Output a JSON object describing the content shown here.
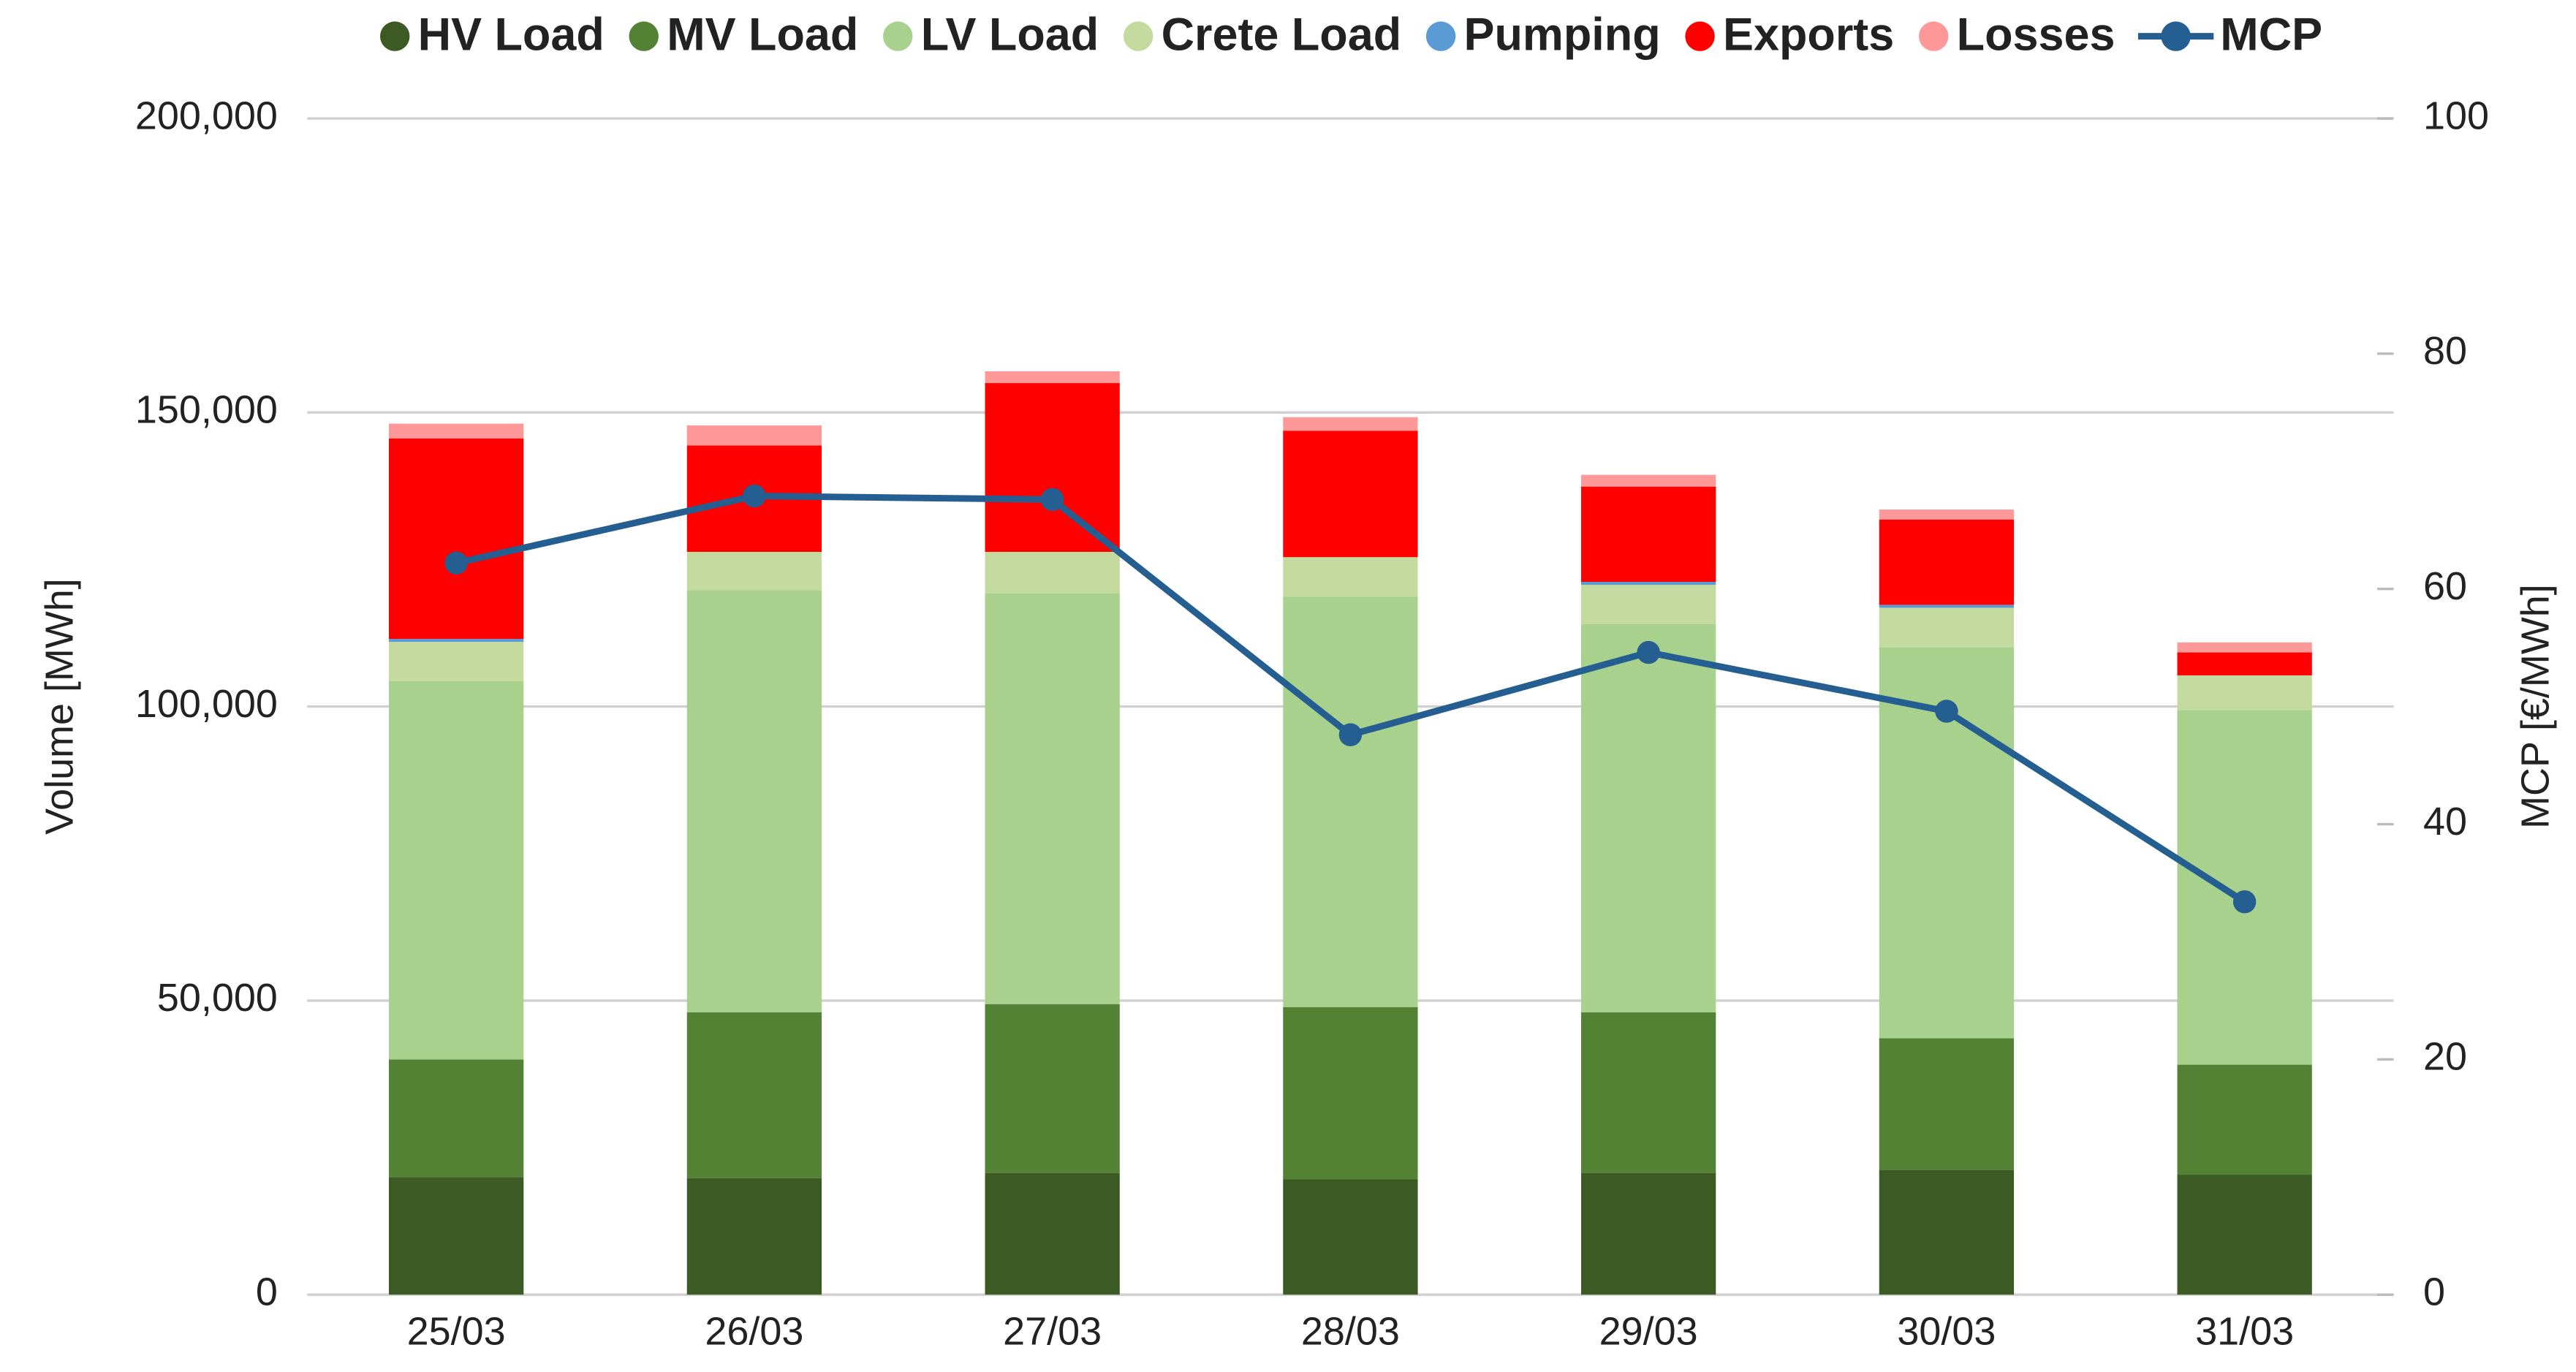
{
  "chart_data": {
    "type": "bar",
    "stacked": true,
    "categories": [
      "25/03",
      "26/03",
      "27/03",
      "28/03",
      "29/03",
      "30/03",
      "31/03"
    ],
    "series": [
      {
        "name": "HV Load",
        "color": "#3b5a24",
        "values": [
          20000,
          19800,
          20700,
          19600,
          20700,
          21200,
          20400
        ]
      },
      {
        "name": "MV Load",
        "color": "#548235",
        "values": [
          20000,
          28200,
          28700,
          29300,
          27300,
          22400,
          18700
        ]
      },
      {
        "name": "LV Load",
        "color": "#a9d18e",
        "values": [
          64300,
          71800,
          69900,
          69800,
          66000,
          66500,
          60300
        ]
      },
      {
        "name": "Crete Load",
        "color": "#c5da9f",
        "values": [
          6700,
          6500,
          7000,
          6700,
          6700,
          6700,
          5900
        ]
      },
      {
        "name": "Pumping",
        "color": "#5b9bd5",
        "values": [
          500,
          0,
          0,
          0,
          500,
          500,
          0
        ]
      },
      {
        "name": "Exports",
        "color": "#ff0000",
        "values": [
          34100,
          18100,
          28700,
          21500,
          16200,
          14500,
          3900
        ]
      },
      {
        "name": "Losses",
        "color": "#ff9999",
        "values": [
          2500,
          3400,
          2000,
          2300,
          2000,
          1700,
          1700
        ]
      },
      {
        "name": "MCP",
        "color": "#255e91",
        "type": "line",
        "axis": "y2",
        "values": [
          62.2,
          67.9,
          67.6,
          47.6,
          54.6,
          49.6,
          33.4
        ]
      }
    ],
    "ylabel": "Volume [MWh]",
    "y2label": "MCP [€/MWh]",
    "ylim": [
      0,
      200000
    ],
    "yticks": [
      0,
      {
        "value": 50000,
        "label": "50,000"
      },
      {
        "value": 100000,
        "label": "100,000"
      },
      {
        "value": 150000,
        "label": "150,000"
      },
      {
        "value": 200000,
        "label": "200,000"
      }
    ],
    "y2lim": [
      0,
      100
    ],
    "y2ticks": [
      0,
      20,
      40,
      60,
      80,
      100
    ],
    "grid": true,
    "legend": "top"
  }
}
